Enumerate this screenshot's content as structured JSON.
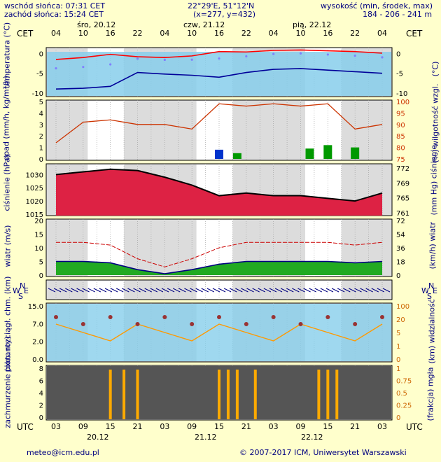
{
  "header": {
    "sunrise": "wschód słońca: 07:31 CET",
    "sunset": "zachód słońca: 15:24 CET",
    "coords": "22°29'E, 51°12'N",
    "grid": "(x=277, y=432)",
    "height_label": "wysokość (min, środek, max)",
    "height_values": "184 - 206 - 241 m"
  },
  "top_axis": {
    "tz": "CET",
    "days": [
      "śro, 20.12",
      "czw, 21.12",
      "pią, 22.12"
    ],
    "hours": [
      "04",
      "10",
      "16",
      "22",
      "04",
      "10",
      "16",
      "22",
      "04",
      "10",
      "16",
      "22",
      "04"
    ]
  },
  "bottom_axis": {
    "tz": "UTC",
    "hours": [
      "03",
      "09",
      "15",
      "21",
      "03",
      "09",
      "15",
      "21",
      "03",
      "09",
      "15",
      "21",
      "03"
    ],
    "dates": [
      "20.12",
      "21.12",
      "22.12"
    ]
  },
  "panels": {
    "temperature": {
      "left": "temperatura\n(°C)",
      "right": "(°C)",
      "ticks": [
        "0",
        "-5",
        "-10"
      ]
    },
    "precip": {
      "left": "opad\n(mm/h, kg/m²/h)",
      "right": "(%)\nwilgotność wzgl.",
      "ticks": [
        "5",
        "4",
        "3",
        "2",
        "1",
        "0"
      ],
      "rticks": [
        "100",
        "95",
        "90",
        "85",
        "80",
        "75"
      ]
    },
    "pressure": {
      "left": "ciśnienie\n(hPa)",
      "right": "(mm Hg)\nciśnienie",
      "ticks": [
        "1030",
        "1025",
        "1020",
        "1015"
      ],
      "rticks": [
        "772",
        "769",
        "765",
        "761"
      ]
    },
    "wind": {
      "left": "wiatr\n(m/s)",
      "right": "(km/h)\nwiatr",
      "ticks": [
        "20",
        "15",
        "10",
        "5",
        "0"
      ],
      "rticks": [
        "72",
        "54",
        "36",
        "18",
        "0"
      ]
    },
    "winddir": {
      "labels": [
        "N",
        "W",
        "S",
        "E"
      ]
    },
    "cloudbase": {
      "left": "pion. rozciągł. chm.\n(km)",
      "right": "(km)\nwidzialność",
      "ticks": [
        "15.0",
        "7.0",
        "2.0",
        "0.0"
      ],
      "rticks": [
        "100",
        "20",
        "5",
        "1",
        "0"
      ]
    },
    "cloud": {
      "left": "zachmurzenie\n(oktanty)",
      "right": "(frakcja)\nmgła",
      "ticks": [
        "8",
        "6",
        "4",
        "2",
        "0"
      ],
      "rticks": [
        "1",
        "0.75",
        "0.5",
        "0.25",
        "0"
      ]
    }
  },
  "footer": {
    "email": "meteo@icm.edu.pl",
    "copyright": "© 2007-2017 ICM, Uniwersytet Warszawski"
  },
  "chart_data": {
    "type": "line",
    "x_hours_utc": [
      0,
      6,
      12,
      18,
      24,
      30,
      36,
      42,
      48,
      54,
      60,
      66,
      72
    ],
    "series": [
      {
        "values": [
          -1.5,
          -1.0,
          -0.2,
          -0.8,
          -1.0,
          -0.6,
          0.5,
          0.4,
          0.8,
          0.9,
          0.7,
          0.5,
          0.1
        ]
      },
      {
        "values": [
          -9.0,
          -8.8,
          -8.3,
          -4.8,
          -5.2,
          -5.5,
          -6.0,
          -4.8,
          -4.0,
          -3.8,
          -4.2,
          -4.6,
          -5.0
        ]
      },
      {
        "values": [
          1030,
          1031,
          1032,
          1031.5,
          1029,
          1026,
          1022,
          1023,
          1022,
          1022,
          1021,
          1020,
          1023
        ]
      },
      {
        "values": [
          5,
          5,
          4.5,
          2,
          0.5,
          2,
          4,
          5,
          5,
          5,
          5,
          4.5,
          5
        ]
      },
      {
        "values": [
          82,
          91,
          92,
          90,
          90,
          88,
          99,
          98,
          99,
          98,
          99,
          88,
          90
        ]
      }
    ],
    "colors": {
      "accent": "#000080",
      "bg": "#ffffcc",
      "sky": "#87ceeb",
      "temp": "#ff0000",
      "pressure": "#cc0033",
      "wind": "#009900"
    }
  }
}
